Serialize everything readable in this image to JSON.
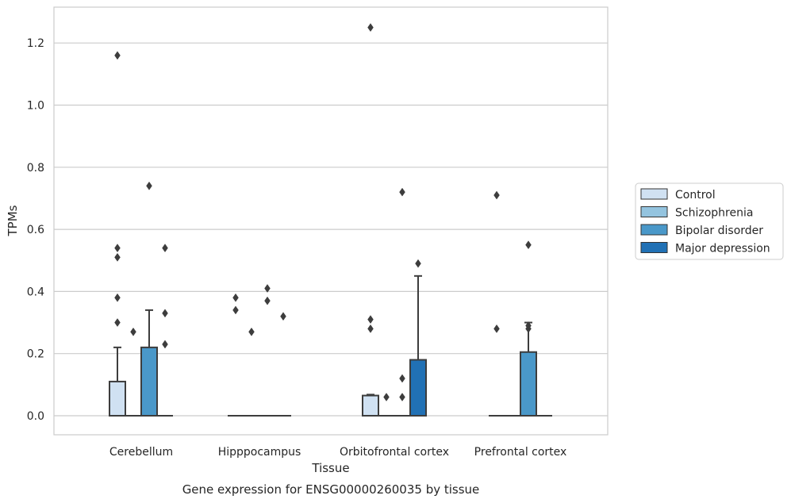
{
  "chart_data": {
    "type": "box",
    "xlabel": "Tissue",
    "ylabel": "TPMs",
    "caption": "Gene expression for ENSG00000260035 by tissue",
    "ylim": [
      -0.06,
      1.32
    ],
    "yticks": [
      "0.0",
      "0.2",
      "0.4",
      "0.6",
      "0.8",
      "1.0",
      "1.2"
    ],
    "grid": "horizontal",
    "legend_position": "right",
    "categories": [
      "Cerebellum",
      "Hipppocampus",
      "Orbitofrontal cortex",
      "Prefrontal cortex"
    ],
    "series": [
      {
        "name": "Control",
        "color": "#d0e1f2",
        "boxes": [
          {
            "q1": 0,
            "median": 0,
            "q3": 0.11,
            "whisker_low": 0,
            "whisker_high": 0.22,
            "outliers": [
              0.3,
              0.38,
              0.51,
              0.54,
              1.16
            ]
          },
          {
            "q1": 0,
            "median": 0,
            "q3": 0,
            "whisker_low": 0,
            "whisker_high": 0,
            "outliers": [
              0.34,
              0.38
            ]
          },
          {
            "q1": 0,
            "median": 0,
            "q3": 0.065,
            "whisker_low": 0,
            "whisker_high": 0.068,
            "outliers": [
              0.28,
              0.31,
              1.25
            ]
          },
          {
            "q1": 0,
            "median": 0,
            "q3": 0,
            "whisker_low": 0,
            "whisker_high": 0,
            "outliers": [
              0.28,
              0.71
            ]
          }
        ]
      },
      {
        "name": "Schizophrenia",
        "color": "#94c4df",
        "boxes": [
          {
            "q1": 0,
            "median": 0,
            "q3": 0,
            "whisker_low": 0,
            "whisker_high": 0,
            "outliers": [
              0.27
            ]
          },
          {
            "q1": 0,
            "median": 0,
            "q3": 0,
            "whisker_low": 0,
            "whisker_high": 0,
            "outliers": [
              0.27
            ]
          },
          {
            "q1": 0,
            "median": 0,
            "q3": 0,
            "whisker_low": 0,
            "whisker_high": 0,
            "outliers": [
              0.06
            ]
          },
          {
            "q1": 0,
            "median": 0,
            "q3": 0,
            "whisker_low": 0,
            "whisker_high": 0,
            "outliers": []
          }
        ]
      },
      {
        "name": "Bipolar disorder",
        "color": "#4a98c9",
        "boxes": [
          {
            "q1": 0,
            "median": 0,
            "q3": 0.22,
            "whisker_low": 0,
            "whisker_high": 0.34,
            "outliers": [
              0.74
            ]
          },
          {
            "q1": 0,
            "median": 0,
            "q3": 0,
            "whisker_low": 0,
            "whisker_high": 0,
            "outliers": [
              0.37,
              0.41
            ]
          },
          {
            "q1": 0,
            "median": 0,
            "q3": 0,
            "whisker_low": 0,
            "whisker_high": 0,
            "outliers": [
              0.06,
              0.12,
              0.72
            ]
          },
          {
            "q1": 0,
            "median": 0,
            "q3": 0.205,
            "whisker_low": 0,
            "whisker_high": 0.3,
            "outliers": [
              0.28,
              0.29,
              0.55
            ]
          }
        ]
      },
      {
        "name": "Major depression",
        "color": "#2171b5",
        "boxes": [
          {
            "q1": 0,
            "median": 0,
            "q3": 0,
            "whisker_low": 0,
            "whisker_high": 0,
            "outliers": [
              0.23,
              0.33,
              0.54
            ]
          },
          {
            "q1": 0,
            "median": 0,
            "q3": 0,
            "whisker_low": 0,
            "whisker_high": 0,
            "outliers": [
              0.32
            ]
          },
          {
            "q1": 0,
            "median": 0,
            "q3": 0.18,
            "whisker_low": 0,
            "whisker_high": 0.45,
            "outliers": [
              0.49
            ]
          },
          {
            "q1": 0,
            "median": 0,
            "q3": 0,
            "whisker_low": 0,
            "whisker_high": 0,
            "outliers": []
          }
        ]
      }
    ]
  }
}
